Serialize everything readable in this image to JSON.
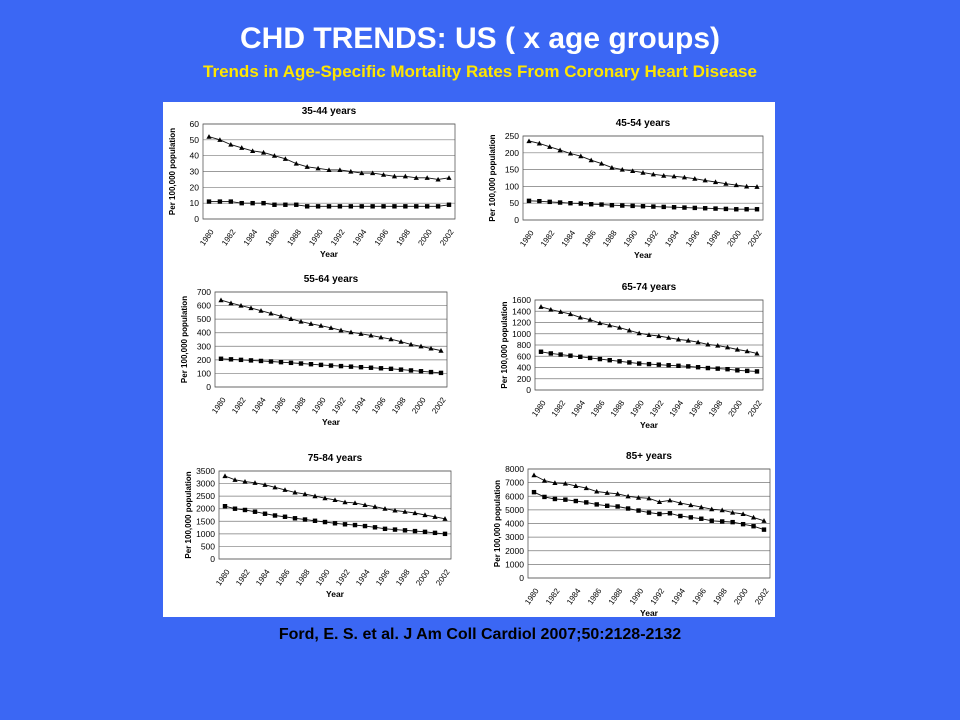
{
  "slide": {
    "title": "CHD TRENDS: US ( x age groups)",
    "subtitle": "Trends in Age-Specific Mortality Rates From Coronary Heart Disease",
    "citation": "Ford, E. S. et al. J Am Coll Cardiol 2007;50:2128-2132"
  },
  "colors": {
    "background": "#3b67f4",
    "title": "#ffffff",
    "subtitle": "#ffe600",
    "citation": "#000000"
  },
  "chart_data": [
    {
      "type": "line",
      "title": "35-44 years",
      "xlabel": "Year",
      "ylabel": "Per 100,000 population",
      "x": [
        1980,
        1981,
        1982,
        1983,
        1984,
        1985,
        1986,
        1987,
        1988,
        1989,
        1990,
        1991,
        1992,
        1993,
        1994,
        1995,
        1996,
        1997,
        1998,
        1999,
        2000,
        2001,
        2002
      ],
      "xticks": [
        "1980",
        "1982",
        "1984",
        "1986",
        "1988",
        "1990",
        "1992",
        "1994",
        "1996",
        "1998",
        "2000",
        "2002"
      ],
      "ylim": [
        0,
        60
      ],
      "yticks": [
        0,
        10,
        20,
        30,
        40,
        50,
        60
      ],
      "series": [
        {
          "marker": "triangle",
          "values": [
            52,
            50,
            47,
            45,
            43,
            42,
            40,
            38,
            35,
            33,
            32,
            31,
            31,
            30,
            29,
            29,
            28,
            27,
            27,
            26,
            26,
            25,
            26
          ]
        },
        {
          "marker": "square",
          "values": [
            11,
            11,
            11,
            10,
            10,
            10,
            9,
            9,
            9,
            8,
            8,
            8,
            8,
            8,
            8,
            8,
            8,
            8,
            8,
            8,
            8,
            8,
            9
          ]
        }
      ]
    },
    {
      "type": "line",
      "title": "45-54 years",
      "xlabel": "Year",
      "ylabel": "Per 100,000 population",
      "x": [
        1980,
        1981,
        1982,
        1983,
        1984,
        1985,
        1986,
        1987,
        1988,
        1989,
        1990,
        1991,
        1992,
        1993,
        1994,
        1995,
        1996,
        1997,
        1998,
        1999,
        2000,
        2001,
        2002
      ],
      "xticks": [
        "1980",
        "1982",
        "1984",
        "1986",
        "1988",
        "1990",
        "1992",
        "1994",
        "1996",
        "1998",
        "2000",
        "2002"
      ],
      "ylim": [
        0,
        250
      ],
      "yticks": [
        0,
        50,
        100,
        150,
        200,
        250
      ],
      "series": [
        {
          "marker": "triangle",
          "values": [
            235,
            228,
            218,
            208,
            198,
            190,
            178,
            168,
            156,
            150,
            146,
            141,
            136,
            132,
            130,
            127,
            123,
            118,
            113,
            108,
            104,
            100,
            99
          ]
        },
        {
          "marker": "square",
          "values": [
            57,
            56,
            54,
            52,
            50,
            49,
            47,
            46,
            44,
            43,
            42,
            41,
            40,
            39,
            38,
            37,
            36,
            35,
            34,
            33,
            32,
            32,
            32
          ]
        }
      ]
    },
    {
      "type": "line",
      "title": "55-64 years",
      "xlabel": "Year",
      "ylabel": "Per 100,000 population",
      "x": [
        1980,
        1981,
        1982,
        1983,
        1984,
        1985,
        1986,
        1987,
        1988,
        1989,
        1990,
        1991,
        1992,
        1993,
        1994,
        1995,
        1996,
        1997,
        1998,
        1999,
        2000,
        2001,
        2002
      ],
      "xticks": [
        "1980",
        "1982",
        "1984",
        "1986",
        "1988",
        "1990",
        "1992",
        "1994",
        "1996",
        "1998",
        "2000",
        "2002"
      ],
      "ylim": [
        0,
        700
      ],
      "yticks": [
        0,
        100,
        200,
        300,
        400,
        500,
        600,
        700
      ],
      "series": [
        {
          "marker": "triangle",
          "values": [
            640,
            618,
            600,
            582,
            562,
            542,
            522,
            502,
            482,
            466,
            452,
            436,
            418,
            404,
            392,
            380,
            366,
            352,
            334,
            314,
            300,
            284,
            268
          ]
        },
        {
          "marker": "square",
          "values": [
            208,
            204,
            200,
            196,
            192,
            188,
            183,
            178,
            173,
            168,
            163,
            158,
            154,
            150,
            146,
            142,
            138,
            134,
            128,
            122,
            116,
            110,
            104
          ]
        }
      ]
    },
    {
      "type": "line",
      "title": "65-74 years",
      "xlabel": "Year",
      "ylabel": "Per 100,000 population",
      "x": [
        1980,
        1981,
        1982,
        1983,
        1984,
        1985,
        1986,
        1987,
        1988,
        1989,
        1990,
        1991,
        1992,
        1993,
        1994,
        1995,
        1996,
        1997,
        1998,
        1999,
        2000,
        2001,
        2002
      ],
      "xticks": [
        "1980",
        "1982",
        "1984",
        "1986",
        "1988",
        "1990",
        "1992",
        "1994",
        "1996",
        "1998",
        "2000",
        "2002"
      ],
      "ylim": [
        0,
        1600
      ],
      "yticks": [
        0,
        200,
        400,
        600,
        800,
        1000,
        1200,
        1400,
        1600
      ],
      "series": [
        {
          "marker": "triangle",
          "values": [
            1480,
            1430,
            1390,
            1350,
            1290,
            1250,
            1190,
            1150,
            1110,
            1060,
            1010,
            980,
            960,
            930,
            900,
            880,
            850,
            810,
            790,
            760,
            720,
            690,
            650
          ]
        },
        {
          "marker": "square",
          "values": [
            680,
            650,
            630,
            610,
            590,
            570,
            550,
            530,
            510,
            490,
            470,
            460,
            450,
            440,
            430,
            420,
            405,
            390,
            380,
            370,
            350,
            340,
            330
          ]
        }
      ]
    },
    {
      "type": "line",
      "title": "75-84 years",
      "xlabel": "Year",
      "ylabel": "Per 100,000 population",
      "x": [
        1980,
        1981,
        1982,
        1983,
        1984,
        1985,
        1986,
        1987,
        1988,
        1989,
        1990,
        1991,
        1992,
        1993,
        1994,
        1995,
        1996,
        1997,
        1998,
        1999,
        2000,
        2001,
        2002
      ],
      "xticks": [
        "1980",
        "1982",
        "1984",
        "1986",
        "1988",
        "1990",
        "1992",
        "1994",
        "1996",
        "1998",
        "2000",
        "2002"
      ],
      "ylim": [
        0,
        3500
      ],
      "yticks": [
        0,
        500,
        1000,
        1500,
        2000,
        2500,
        3000,
        3500
      ],
      "series": [
        {
          "marker": "triangle",
          "values": [
            3300,
            3150,
            3080,
            3030,
            2950,
            2850,
            2750,
            2650,
            2580,
            2500,
            2420,
            2350,
            2260,
            2230,
            2150,
            2080,
            2000,
            1930,
            1880,
            1830,
            1750,
            1680,
            1600
          ]
        },
        {
          "marker": "square",
          "values": [
            2100,
            2000,
            1950,
            1880,
            1800,
            1730,
            1680,
            1620,
            1570,
            1520,
            1470,
            1420,
            1380,
            1350,
            1310,
            1260,
            1200,
            1170,
            1140,
            1110,
            1080,
            1040,
            1000
          ]
        }
      ]
    },
    {
      "type": "line",
      "title": "85+ years",
      "xlabel": "Year",
      "ylabel": "Per 100,000 population",
      "x": [
        1980,
        1981,
        1982,
        1983,
        1984,
        1985,
        1986,
        1987,
        1988,
        1989,
        1990,
        1991,
        1992,
        1993,
        1994,
        1995,
        1996,
        1997,
        1998,
        1999,
        2000,
        2001,
        2002
      ],
      "xticks": [
        "1980",
        "1982",
        "1984",
        "1986",
        "1988",
        "1990",
        "1992",
        "1994",
        "1996",
        "1998",
        "2000",
        "2002"
      ],
      "ylim": [
        0,
        8000
      ],
      "yticks": [
        0,
        1000,
        2000,
        3000,
        4000,
        5000,
        6000,
        7000,
        8000
      ],
      "series": [
        {
          "marker": "triangle",
          "values": [
            7550,
            7150,
            6980,
            6930,
            6760,
            6600,
            6350,
            6250,
            6180,
            6000,
            5900,
            5850,
            5580,
            5700,
            5500,
            5350,
            5200,
            5050,
            4980,
            4800,
            4700,
            4450,
            4200
          ]
        },
        {
          "marker": "square",
          "values": [
            6300,
            5950,
            5800,
            5750,
            5650,
            5550,
            5400,
            5300,
            5250,
            5100,
            4950,
            4800,
            4700,
            4750,
            4550,
            4450,
            4350,
            4200,
            4150,
            4100,
            3950,
            3800,
            3550
          ]
        }
      ]
    }
  ]
}
